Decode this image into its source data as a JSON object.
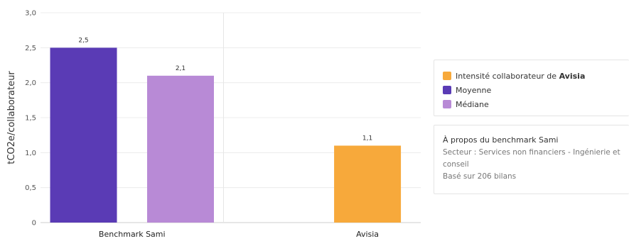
{
  "chart_data": {
    "type": "bar",
    "ylabel": "tCO2e/collaborateur",
    "ylim": [
      0,
      3.0
    ],
    "yticks": [
      "0",
      "0,5",
      "1,0",
      "1,5",
      "2,0",
      "2,5",
      "3,0"
    ],
    "grid": true,
    "groups": [
      {
        "label": "Benchmark Sami",
        "bars": [
          {
            "series": "Moyenne",
            "value": 2.5,
            "label": "2,5",
            "color": "#5a3bb5"
          },
          {
            "series": "Médiane",
            "value": 2.1,
            "label": "2,1",
            "color": "#b88ad6"
          }
        ]
      },
      {
        "label": "Avisia",
        "bars": [
          {
            "series": "Intensité collaborateur de Avisia",
            "value": 1.1,
            "label": "1,1",
            "color": "#f7a93b"
          }
        ]
      }
    ]
  },
  "legend": {
    "items": [
      {
        "prefix": "Intensité collaborateur de ",
        "bold": "Avisia",
        "color": "#f7a93b"
      },
      {
        "prefix": "Moyenne",
        "bold": "",
        "color": "#5a3bb5"
      },
      {
        "prefix": "Médiane",
        "bold": "",
        "color": "#b88ad6"
      }
    ]
  },
  "about": {
    "title": "À propos du benchmark Sami",
    "sector_line1": "Secteur : Services non financiers - Ingénierie et",
    "sector_line2": "conseil",
    "basis": "Basé sur 206 bilans"
  }
}
